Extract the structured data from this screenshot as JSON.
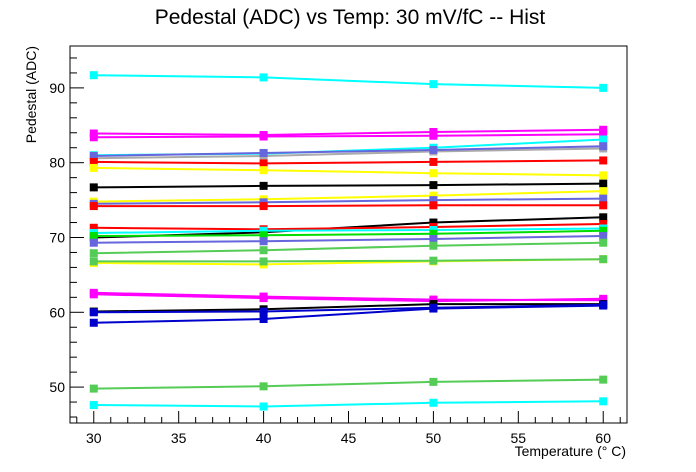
{
  "chart_data": {
    "type": "line",
    "title": "Pedestal (ADC) vs Temp: 30 mV/fC -- Hist",
    "xlabel": "Temperature (° C)",
    "ylabel": "Pedestal (ADC)",
    "xlim": [
      28.6,
      61.4
    ],
    "ylim": [
      45.2,
      95.6
    ],
    "xticks": [
      30,
      35,
      40,
      45,
      50,
      55,
      60
    ],
    "yticks": [
      50,
      60,
      70,
      80,
      90
    ],
    "grid": false,
    "legend": "none",
    "x": [
      30,
      40,
      50,
      60
    ],
    "series": [
      {
        "color": "#00ffff",
        "values": [
          91.7,
          91.4,
          90.5,
          90.0
        ]
      },
      {
        "color": "#ff00ff",
        "values": [
          83.9,
          83.7,
          84.1,
          84.4
        ]
      },
      {
        "color": "#ff00ff",
        "values": [
          83.4,
          83.5,
          83.6,
          83.8
        ]
      },
      {
        "color": "#00ffff",
        "values": [
          81.0,
          81.2,
          82.0,
          83.1
        ]
      },
      {
        "color": "#aaaaaa",
        "values": [
          80.6,
          80.9,
          81.5,
          81.9
        ]
      },
      {
        "color": "#6666dd",
        "values": [
          80.9,
          81.3,
          81.7,
          82.2
        ]
      },
      {
        "color": "#ff0000",
        "values": [
          80.1,
          79.9,
          80.1,
          80.3
        ]
      },
      {
        "color": "#ffff00",
        "values": [
          79.3,
          79.0,
          78.6,
          78.3
        ]
      },
      {
        "color": "#000000",
        "values": [
          76.7,
          76.9,
          77.0,
          77.2
        ]
      },
      {
        "color": "#ffff00",
        "values": [
          74.8,
          75.1,
          75.6,
          76.2
        ]
      },
      {
        "color": "#6666dd",
        "values": [
          74.5,
          74.7,
          75.0,
          75.2
        ]
      },
      {
        "color": "#ff0000",
        "values": [
          74.2,
          74.2,
          74.3,
          74.3
        ]
      },
      {
        "color": "#000000",
        "values": [
          70.0,
          70.7,
          72.0,
          72.7
        ]
      },
      {
        "color": "#ff0000",
        "values": [
          71.3,
          71.1,
          71.4,
          71.8
        ]
      },
      {
        "color": "#00ffff",
        "values": [
          70.6,
          70.9,
          71.0,
          71.2
        ]
      },
      {
        "color": "#00dd00",
        "values": [
          70.2,
          70.3,
          70.5,
          70.9
        ]
      },
      {
        "color": "#6666dd",
        "values": [
          69.3,
          69.5,
          69.8,
          70.2
        ]
      },
      {
        "color": "#55cc55",
        "values": [
          67.9,
          68.3,
          68.9,
          69.3
        ]
      },
      {
        "color": "#ffff00",
        "values": [
          66.6,
          66.4,
          66.8,
          67.1
        ]
      },
      {
        "color": "#55cc55",
        "values": [
          66.8,
          66.8,
          66.9,
          67.1
        ]
      },
      {
        "color": "#ff00ff",
        "values": [
          62.6,
          62.1,
          61.7,
          61.6
        ]
      },
      {
        "color": "#ff00ff",
        "values": [
          62.4,
          61.9,
          61.5,
          61.8
        ]
      },
      {
        "color": "#000000",
        "values": [
          60.1,
          60.4,
          61.1,
          61.1
        ]
      },
      {
        "color": "#0000cc",
        "values": [
          60.0,
          60.1,
          60.6,
          61.0
        ]
      },
      {
        "color": "#0000cc",
        "values": [
          58.6,
          59.1,
          60.5,
          60.9
        ]
      },
      {
        "color": "#55cc55",
        "values": [
          49.8,
          50.1,
          50.7,
          51.0
        ]
      },
      {
        "color": "#00ffff",
        "values": [
          47.6,
          47.4,
          47.9,
          48.1
        ]
      }
    ]
  }
}
